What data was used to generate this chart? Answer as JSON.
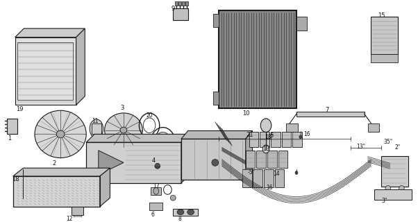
{
  "bg": "#f5f5f0",
  "lc": "#1a1a1a",
  "fig_w": 6.02,
  "fig_h": 3.2,
  "dpi": 100,
  "label_fs": 6.0,
  "label_color": "#111111"
}
